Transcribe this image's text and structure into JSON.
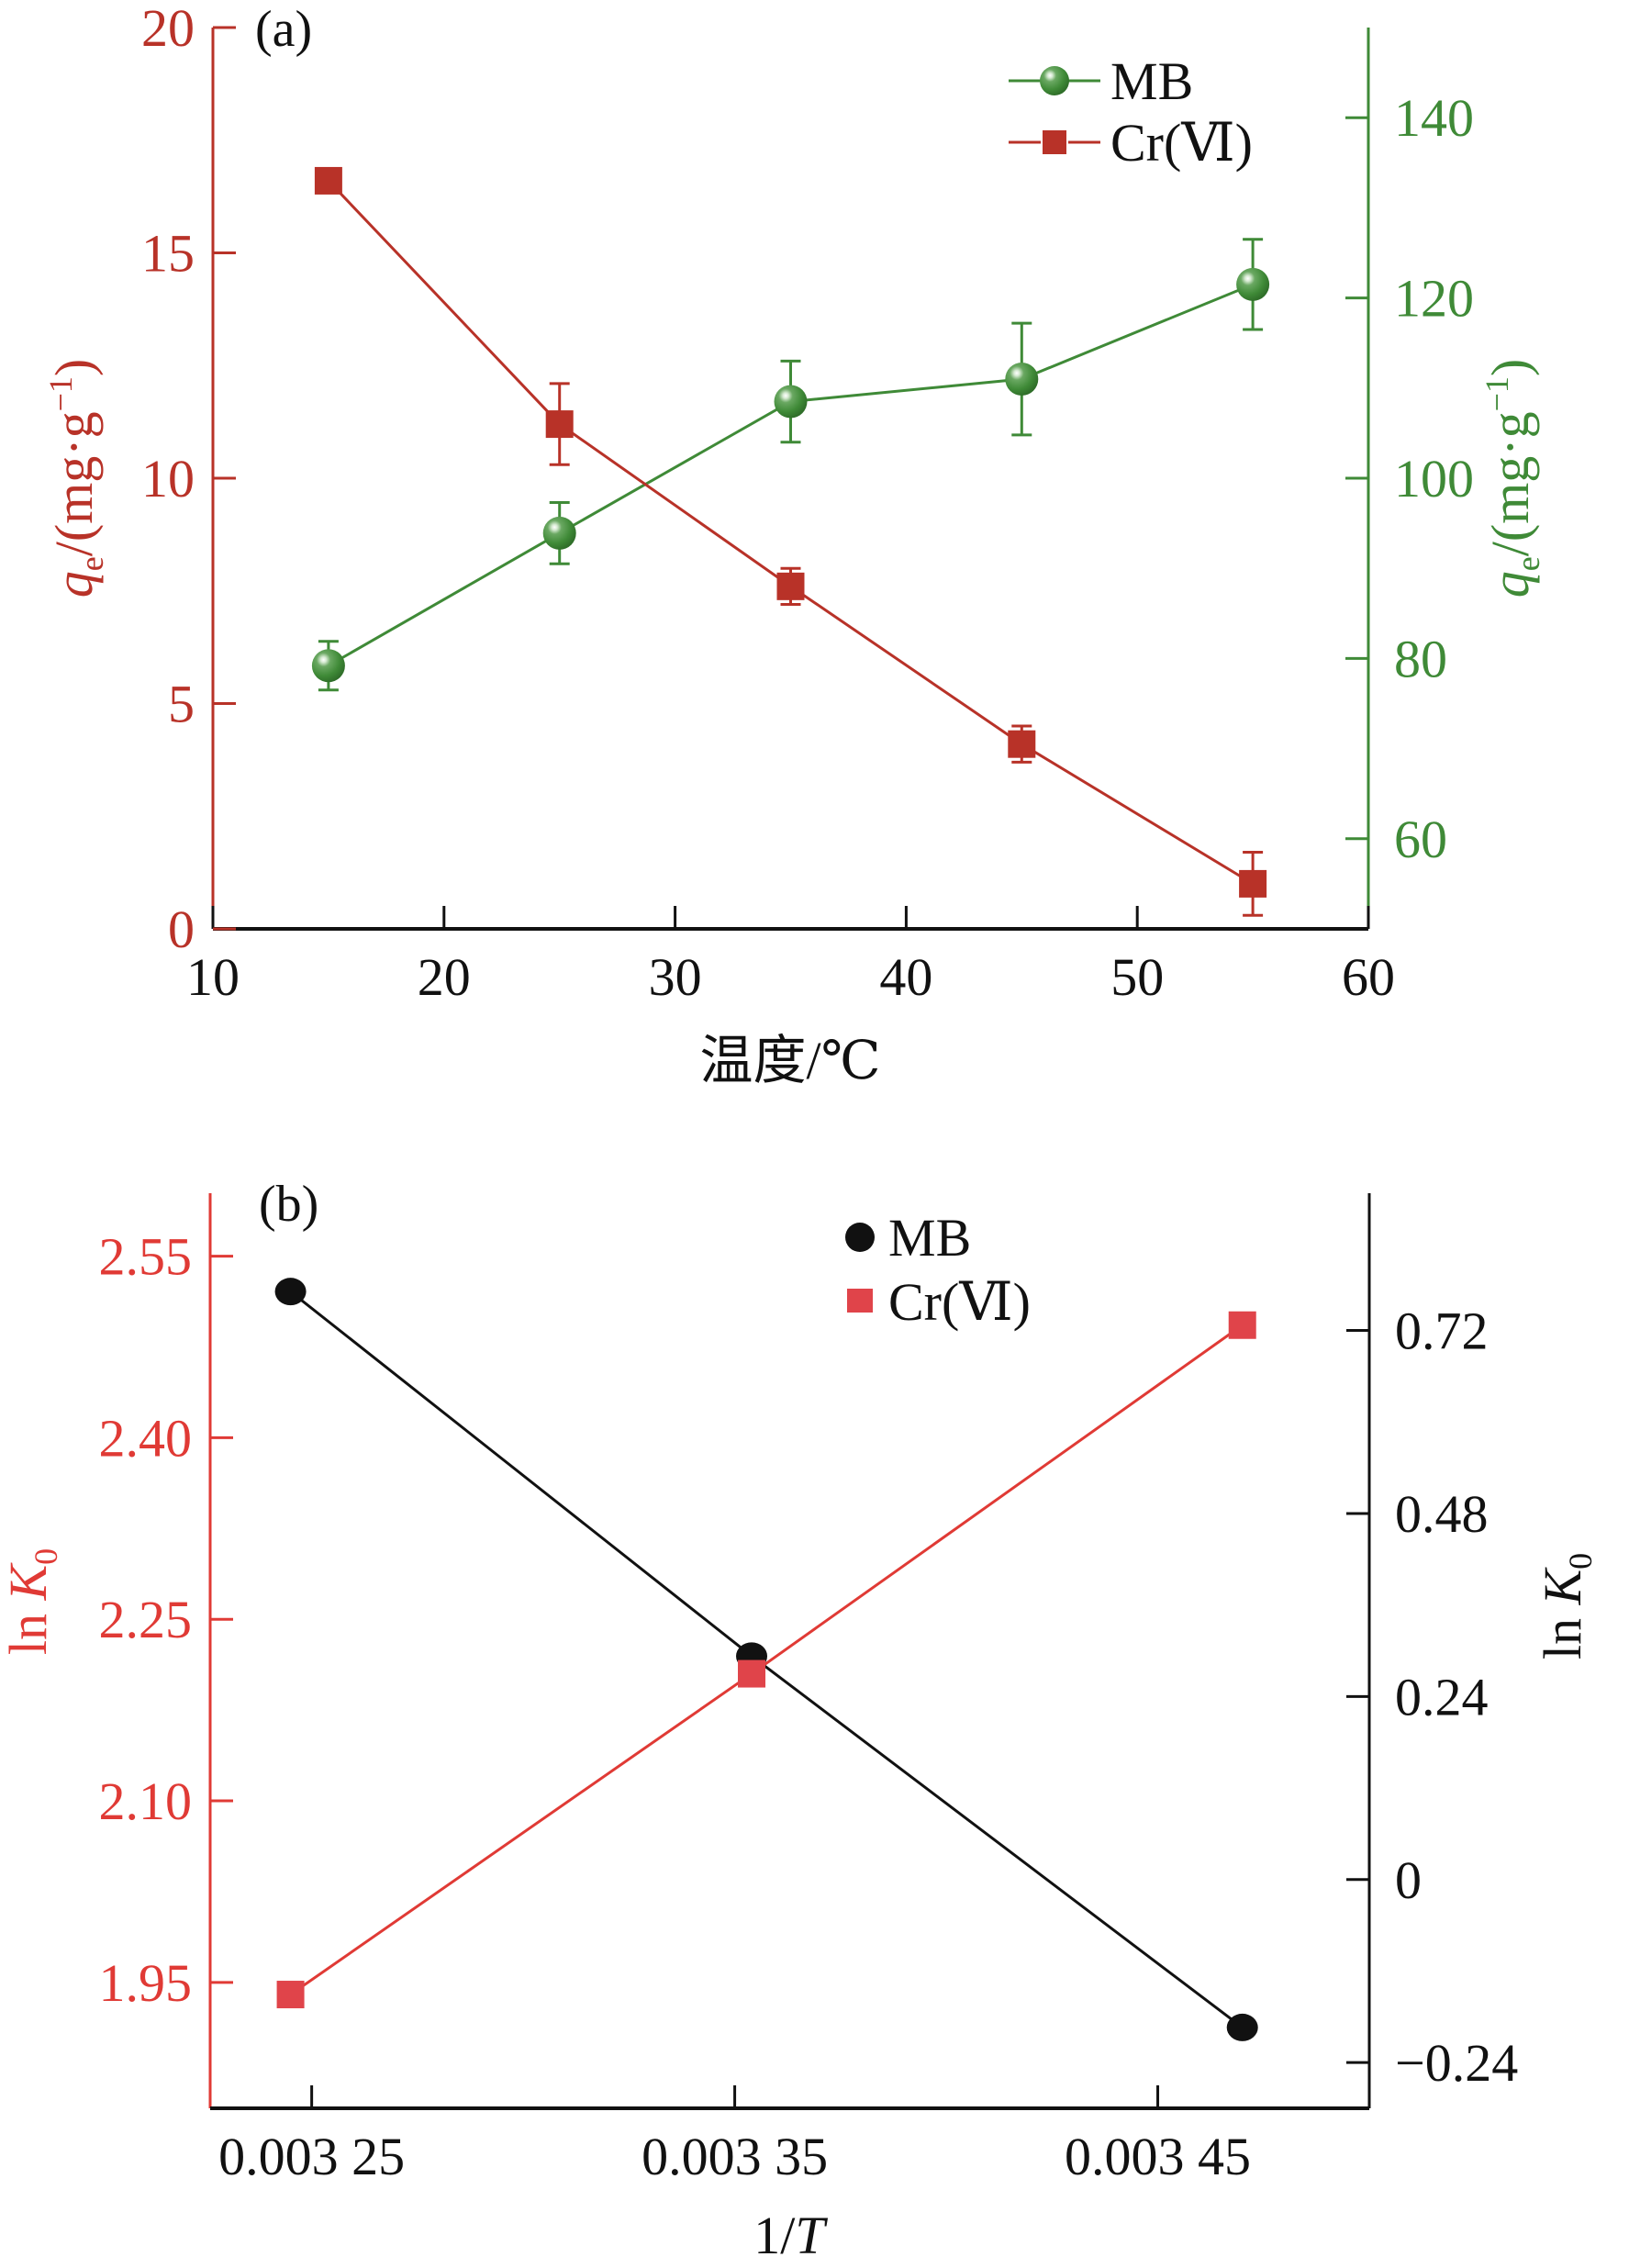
{
  "chart_data": [
    {
      "id": "a",
      "type": "line",
      "panel_label": "(a)",
      "xlabel": "温度/℃",
      "x": [
        15,
        25,
        35,
        45,
        55
      ],
      "xlim": [
        10,
        60
      ],
      "xticks": [
        10,
        20,
        30,
        40,
        50,
        60
      ],
      "xtick_labels": [
        "10",
        "20",
        "30",
        "40",
        "50",
        "60"
      ],
      "ylabel_left": {
        "var": "q",
        "sub": "e",
        "unit": "/(mg·g",
        "sup": "−1",
        "close": ")"
      },
      "ylabel_right": {
        "var": "q",
        "sub": "e",
        "unit": "/(mg·g",
        "sup": "−1",
        "close": ")"
      },
      "ylim_left": [
        0,
        20
      ],
      "yticks_left": [
        0,
        5,
        10,
        15,
        20
      ],
      "ytick_labels_left": [
        "0",
        "5",
        "10",
        "15",
        "20"
      ],
      "ylim_right": [
        50,
        150
      ],
      "yticks_right": [
        60,
        80,
        100,
        120,
        140
      ],
      "ytick_labels_right": [
        "60",
        "80",
        "100",
        "120",
        "140"
      ],
      "legend_position": "top-right",
      "colors": {
        "left_axis": "#b83228",
        "right_axis": "#3f8a37",
        "x_axis": "#111111"
      },
      "series": [
        {
          "name": "MB",
          "axis": "right",
          "marker": "sphere",
          "color": "#3f8a37",
          "values": [
            79.2,
            93.9,
            108.5,
            111.0,
            121.5
          ],
          "errors": [
            2.7,
            3.4,
            4.5,
            6.2,
            5.0
          ]
        },
        {
          "name": "Cr(Ⅵ)",
          "axis": "left",
          "marker": "square",
          "color": "#b83228",
          "values": [
            16.6,
            11.2,
            7.6,
            4.1,
            1.0
          ],
          "errors": [
            0,
            0.9,
            0.4,
            0.4,
            0.7
          ]
        }
      ]
    },
    {
      "id": "b",
      "type": "line",
      "panel_label": "(b)",
      "xlabel": {
        "pre": "1/",
        "var": "T"
      },
      "x": [
        0.003245,
        0.003354,
        0.00347
      ],
      "xlim": [
        0.003226,
        0.0035
      ],
      "xticks": [
        0.00325,
        0.00335,
        0.00345
      ],
      "xtick_labels": [
        "0.003 25",
        "0.003 35",
        "0.003 45"
      ],
      "ylabel_left": {
        "pre": "ln ",
        "var": "K",
        "sub": "0"
      },
      "ylabel_right": {
        "pre": "ln ",
        "var": "K",
        "sub": "0"
      },
      "ylim_left": [
        1.846,
        2.602
      ],
      "yticks_left": [
        1.95,
        2.1,
        2.25,
        2.4,
        2.55
      ],
      "ytick_labels_left": [
        "1.95",
        "2.10",
        "2.25",
        "2.40",
        "2.55"
      ],
      "ylim_right": [
        -0.3,
        0.9
      ],
      "yticks_right": [
        -0.24,
        0,
        0.24,
        0.48,
        0.72
      ],
      "ytick_labels_right": [
        "−0.24",
        "0",
        "0.24",
        "0.48",
        "0.72"
      ],
      "legend_position": "top-center",
      "colors": {
        "left_axis": "#e03a35",
        "right_axis": "#111111",
        "x_axis": "#111111"
      },
      "series": [
        {
          "name": "MB",
          "axis": "right",
          "marker": "circle",
          "color": "#111111",
          "values": [
            0.771,
            0.293,
            -0.194
          ]
        },
        {
          "name": "Cr(Ⅵ)",
          "axis": "left",
          "marker": "square",
          "color": "#e0444a",
          "line_color": "#e03a35",
          "values": [
            1.94,
            2.205,
            2.493
          ]
        }
      ]
    }
  ]
}
